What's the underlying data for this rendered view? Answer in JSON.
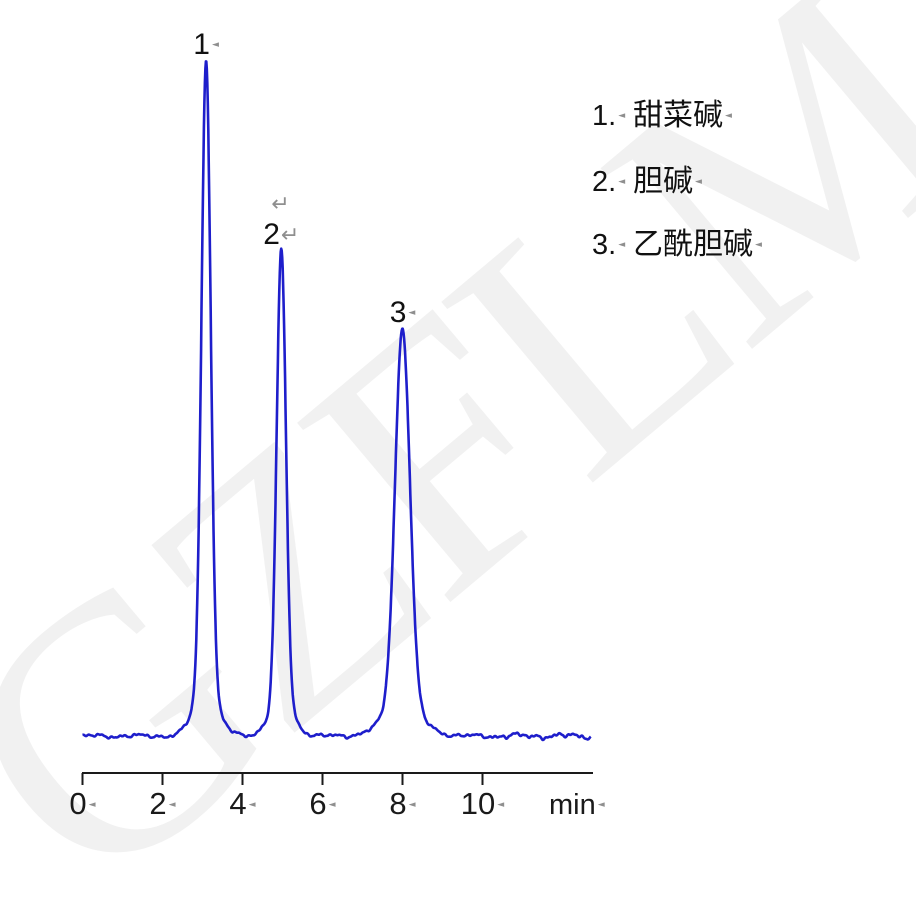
{
  "watermark": {
    "text": "GZFLM"
  },
  "colors": {
    "trace": "#1e1ecb",
    "axis": "#1a1a1a",
    "label_text": "#111111",
    "format_mark": "#8f8f8f",
    "watermark": "#f1f1f1"
  },
  "format_marks": {
    "space_mark": "◄",
    "return_mark": "↵"
  },
  "axis": {
    "unit_label": "min",
    "tick_labels": [
      "0",
      "2",
      "4",
      "6",
      "8",
      "10"
    ]
  },
  "chart_data": {
    "type": "line",
    "title": "",
    "xlabel": "min",
    "ylabel": "",
    "x_ticks": [
      0,
      2,
      4,
      6,
      8,
      10
    ],
    "x_range_min": [
      0,
      12.7
    ],
    "grid": false,
    "legend_position": "right",
    "baseline": "flat with low-amplitude noise",
    "peaks": [
      {
        "label": "1",
        "name": "甜菜碱",
        "rt_min": 3.09,
        "rel_height": 1.0,
        "fwhm_min": 0.27
      },
      {
        "label": "2",
        "name": "胆碱",
        "rt_min": 4.97,
        "rel_height": 0.719,
        "fwhm_min": 0.27
      },
      {
        "label": "3",
        "name": "乙酰胆碱",
        "rt_min": 8.0,
        "rel_height": 0.604,
        "fwhm_min": 0.435
      }
    ]
  },
  "legend": {
    "items": [
      {
        "num": "1.",
        "name": "甜菜碱"
      },
      {
        "num": "2.",
        "name": "胆碱"
      },
      {
        "num": "3.",
        "name": "乙酰胆碱"
      }
    ]
  }
}
